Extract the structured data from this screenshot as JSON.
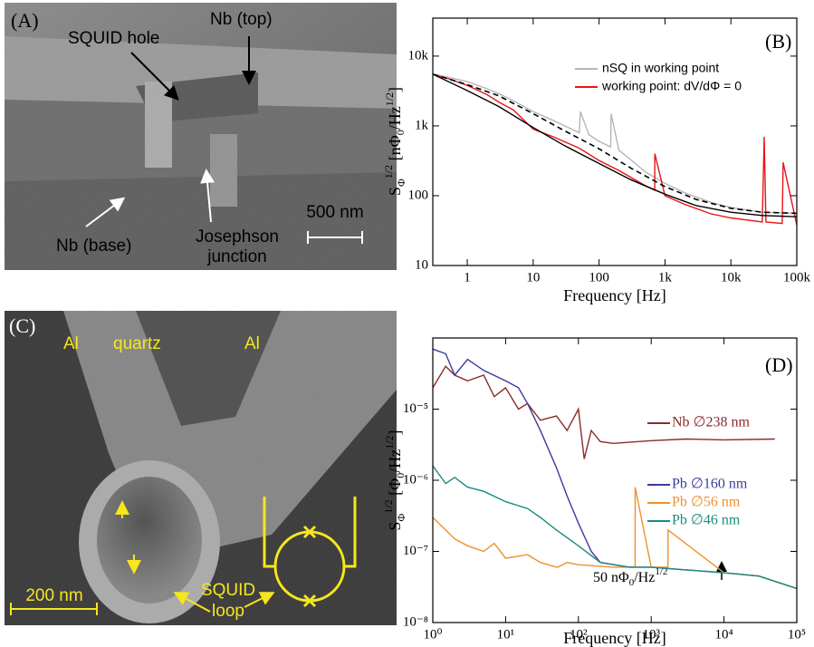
{
  "images": [
    {
      "label": "(A)",
      "annotations": [
        "SQUID hole",
        "Nb (top)",
        "Nb (base)",
        "Josephson",
        "junction",
        "500 nm"
      ]
    },
    {
      "label": "(C)",
      "annotations": [
        "Al",
        "quartz",
        "Al",
        "200 nm",
        "SQUID",
        "loop"
      ]
    }
  ],
  "chart_data": [
    {
      "type": "line",
      "panel_label": "(B)",
      "xlabel": "Frequency [Hz]",
      "ylabel": [
        "S",
        "Φ",
        "1/2",
        " [nΦ",
        "0",
        "/Hz",
        "1/2",
        "]"
      ],
      "xscale": "log",
      "yscale": "log",
      "xlim": [
        0.3,
        100000
      ],
      "ylim": [
        10,
        35000
      ],
      "xticks": [
        1,
        10,
        100,
        {
          "value": 1000,
          "label": "1k"
        },
        {
          "value": 10000,
          "label": "10k"
        },
        {
          "value": 100000,
          "label": "100k"
        }
      ],
      "yticks": [
        10,
        100,
        {
          "value": 1000,
          "label": "1k"
        },
        {
          "value": 10000,
          "label": "10k"
        }
      ],
      "legend": "upper right",
      "series": [
        {
          "name": "nSQ in working point",
          "color": "#b5b5b5",
          "x": [
            0.3,
            0.5,
            1,
            2,
            3,
            5,
            10,
            20,
            30,
            50,
            52,
            70,
            100,
            150,
            152,
            200,
            300,
            500,
            1000,
            2000,
            5000,
            10000,
            30000,
            100000
          ],
          "values": [
            5500,
            5000,
            4300,
            3400,
            2900,
            2300,
            1600,
            1200,
            1000,
            800,
            1600,
            750,
            600,
            500,
            1500,
            450,
            330,
            220,
            150,
            110,
            80,
            68,
            58,
            56
          ]
        },
        {
          "name": "working point: dV/dΦ = 0",
          "color": "#e8141a",
          "x": [
            0.3,
            0.5,
            1,
            2,
            3,
            5,
            10,
            20,
            50,
            100,
            200,
            500,
            700,
            702,
            1000,
            2000,
            5000,
            10000,
            30000,
            32000,
            34000,
            60000,
            62000,
            100000
          ],
          "values": [
            5500,
            4800,
            3800,
            2800,
            2200,
            1700,
            900,
            700,
            480,
            320,
            230,
            140,
            120,
            400,
            100,
            75,
            55,
            48,
            42,
            700,
            42,
            40,
            300,
            38
          ]
        },
        {
          "color": "#000000",
          "dash": true,
          "x": [
            0.3,
            1,
            3,
            10,
            30,
            100,
            300,
            1000,
            3000,
            10000,
            30000,
            100000
          ],
          "values": [
            5500,
            3900,
            2700,
            1500,
            850,
            470,
            250,
            135,
            88,
            66,
            58,
            56
          ]
        },
        {
          "color": "#000000",
          "x": [
            0.3,
            1,
            3,
            10,
            30,
            100,
            300,
            1000,
            3000,
            10000,
            30000,
            100000
          ],
          "values": [
            5500,
            3200,
            1900,
            950,
            520,
            290,
            170,
            105,
            72,
            58,
            52,
            50
          ]
        }
      ]
    },
    {
      "type": "line",
      "panel_label": "(D)",
      "xlabel": "Frequency [Hz]",
      "ylabel": [
        "S",
        "Φ",
        "1/2",
        " [Φ",
        "0",
        "/Hz",
        "1/2",
        "]"
      ],
      "xscale": "log",
      "yscale": "log",
      "xlim": [
        1,
        100000
      ],
      "ylim": [
        1e-08,
        0.0001
      ],
      "xticks": [
        {
          "value": 1,
          "label": "10⁰"
        },
        {
          "value": 10,
          "label": "10¹"
        },
        {
          "value": 100,
          "label": "10²"
        },
        {
          "value": 1000,
          "label": "10³"
        },
        {
          "value": 10000,
          "label": "10⁴"
        },
        {
          "value": 100000,
          "label": "10⁵"
        }
      ],
      "yticks": [
        {
          "value": 1e-08,
          "label": "10⁻⁸"
        },
        {
          "value": 1e-07,
          "label": "10⁻⁷"
        },
        {
          "value": 1e-06,
          "label": "10⁻⁶"
        },
        {
          "value": 1e-05,
          "label": "10⁻⁵"
        }
      ],
      "legend": "right",
      "annotation": [
        "50 nΦ",
        "0",
        "/Hz",
        "1/2"
      ],
      "series": [
        {
          "name": "Nb ∅238 nm",
          "color": "#8b2b2b",
          "x": [
            1,
            1.5,
            2,
            3,
            5,
            7,
            10,
            15,
            20,
            30,
            50,
            70,
            100,
            120,
            150,
            200,
            300,
            1000,
            3000,
            10000,
            50000
          ],
          "values": [
            2e-05,
            4e-05,
            3e-05,
            2.5e-05,
            3e-05,
            1.5e-05,
            2e-05,
            1e-05,
            1.2e-05,
            7e-06,
            8e-06,
            5e-06,
            1e-05,
            2e-06,
            5e-06,
            3.5e-06,
            3.3e-06,
            3.6e-06,
            3.8e-06,
            3.7e-06,
            3.8e-06
          ]
        },
        {
          "name": "Pb ∅160 nm",
          "color": "#3a3aa0",
          "x": [
            1,
            1.5,
            2,
            3,
            5,
            10,
            15,
            20,
            30,
            50,
            70,
            100,
            150,
            200,
            500,
            1000,
            3000,
            10000,
            30000,
            100000
          ],
          "values": [
            7e-05,
            6e-05,
            3e-05,
            5e-05,
            3.5e-05,
            2.5e-05,
            2e-05,
            1.2e-05,
            5e-06,
            1.5e-06,
            6e-07,
            2.5e-07,
            1e-07,
            7e-08,
            6e-08,
            6e-08,
            5.5e-08,
            5e-08,
            4.5e-08,
            3e-08
          ]
        },
        {
          "name": "Pb ∅56 nm",
          "color": "#f0902a",
          "x": [
            1,
            1.5,
            2,
            3,
            5,
            7,
            10,
            20,
            30,
            50,
            52,
            70,
            100,
            300,
            600,
            602,
            1000,
            1700,
            1702,
            10000,
            30000,
            100000
          ],
          "values": [
            3e-07,
            2e-07,
            1.5e-07,
            1.2e-07,
            1e-07,
            1.3e-07,
            8e-08,
            9e-08,
            7e-08,
            6e-08,
            6e-08,
            7e-08,
            6.5e-08,
            6e-08,
            6e-08,
            8e-07,
            6e-08,
            6e-08,
            2e-07,
            5e-08,
            4.5e-08,
            3e-08
          ]
        },
        {
          "name": "Pb ∅46 nm",
          "color": "#1a8a7f",
          "x": [
            1,
            1.5,
            2,
            3,
            5,
            10,
            20,
            30,
            50,
            100,
            200,
            500,
            1000,
            3000,
            10000,
            30000,
            100000
          ],
          "values": [
            1.6e-06,
            9e-07,
            1.1e-06,
            8e-07,
            7e-07,
            5e-07,
            4e-07,
            3e-07,
            2e-07,
            1.2e-07,
            7e-08,
            6e-08,
            6e-08,
            5.5e-08,
            5e-08,
            4.5e-08,
            3e-08
          ]
        }
      ]
    }
  ]
}
